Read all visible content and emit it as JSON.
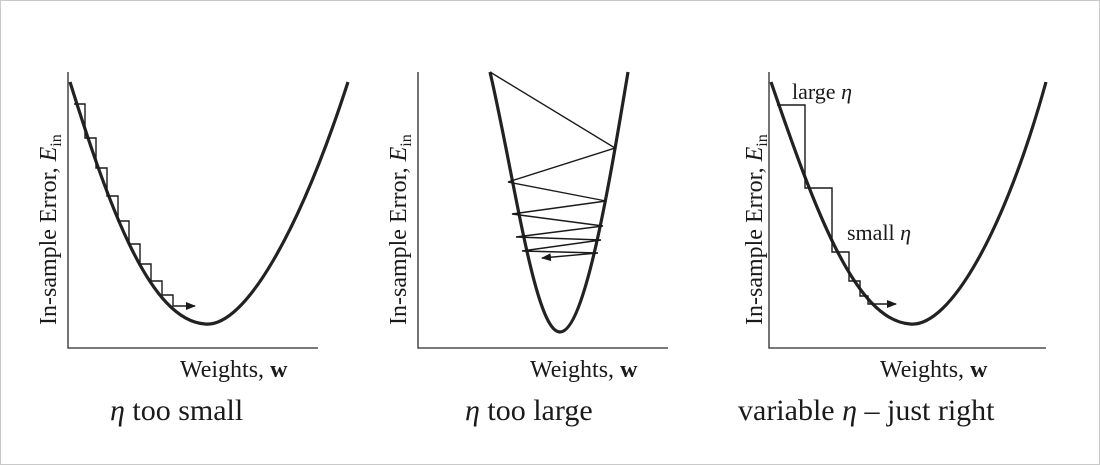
{
  "panels": [
    {
      "ylabel_main": "In-sample Error, ",
      "ylabel_sym": "E",
      "ylabel_sub": "in",
      "xlabel_main": "Weights, ",
      "xlabel_sym": "w",
      "caption_sym": "η",
      "caption_rest": " too small"
    },
    {
      "ylabel_main": "In-sample Error, ",
      "ylabel_sym": "E",
      "ylabel_sub": "in",
      "xlabel_main": "Weights, ",
      "xlabel_sym": "w",
      "caption_sym": "η",
      "caption_rest": " too large"
    },
    {
      "ylabel_main": "In-sample Error, ",
      "ylabel_sym": "E",
      "ylabel_sub": "in",
      "xlabel_main": "Weights, ",
      "xlabel_sym": "w",
      "caption_pre": "variable ",
      "caption_sym": "η",
      "caption_rest": " – just right",
      "annot_large_text": "large ",
      "annot_large_sym": "η",
      "annot_small_text": "small ",
      "annot_small_sym": "η"
    }
  ]
}
